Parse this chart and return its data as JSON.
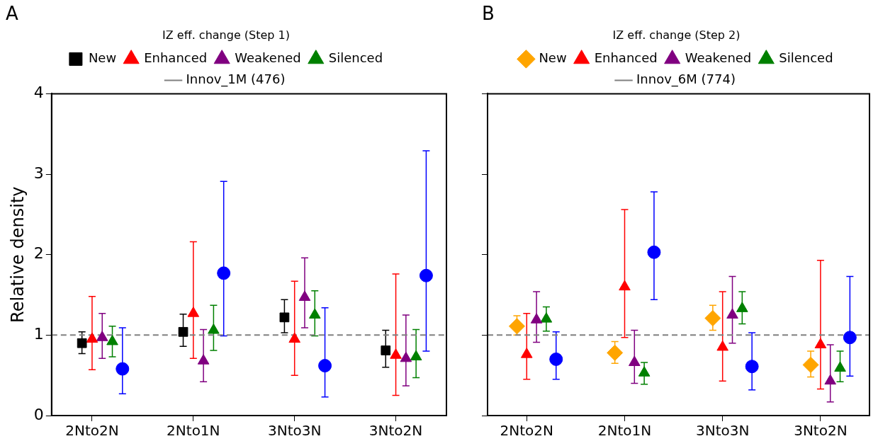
{
  "chart_data": [
    {
      "type": "scatter",
      "title": "A",
      "ylabel": "Relative density",
      "legend_title": "IZ eff. change (Step 1)",
      "legend": "top",
      "grid": false,
      "categories": [
        "2Nto2N",
        "2Nto1N",
        "3Nto3N",
        "3Nto2N"
      ],
      "ylim": [
        0,
        4
      ],
      "yticks": [
        0,
        1,
        2,
        3,
        4
      ],
      "ref_lines": [
        {
          "axis": "y",
          "value": 1,
          "label": "Innov_1M (476)",
          "color": "#808080",
          "line_style": "dashed"
        }
      ],
      "series": [
        {
          "name": "New",
          "color": "#000000",
          "marker": "square",
          "values": [
            0.9,
            1.04,
            1.22,
            0.81
          ],
          "errors": [
            [
              0.77,
              1.04
            ],
            [
              0.86,
              1.26
            ],
            [
              1.03,
              1.44
            ],
            [
              0.6,
              1.06
            ]
          ]
        },
        {
          "name": "Enhanced",
          "color": "#ff0000",
          "marker": "triangle",
          "values": [
            0.95,
            1.27,
            0.95,
            0.75
          ],
          "errors": [
            [
              0.57,
              1.48
            ],
            [
              0.71,
              2.16
            ],
            [
              0.5,
              1.67
            ],
            [
              0.25,
              1.76
            ]
          ]
        },
        {
          "name": "Weakened",
          "color": "#800080",
          "marker": "triangle",
          "values": [
            0.97,
            0.68,
            1.47,
            0.71
          ],
          "errors": [
            [
              0.71,
              1.27
            ],
            [
              0.42,
              1.07
            ],
            [
              1.09,
              1.96
            ],
            [
              0.37,
              1.25
            ]
          ]
        },
        {
          "name": "Silenced",
          "color": "#008000",
          "marker": "triangle",
          "values": [
            0.92,
            1.06,
            1.25,
            0.73
          ],
          "errors": [
            [
              0.73,
              1.11
            ],
            [
              0.81,
              1.37
            ],
            [
              0.99,
              1.55
            ],
            [
              0.47,
              1.07
            ]
          ]
        },
        {
          "color": "#0000ff",
          "marker": "circle",
          "values": [
            0.58,
            1.77,
            0.62,
            1.74
          ],
          "errors": [
            [
              0.27,
              1.09
            ],
            [
              0.99,
              2.91
            ],
            [
              0.23,
              1.34
            ],
            [
              0.8,
              3.29
            ]
          ]
        }
      ]
    },
    {
      "type": "scatter",
      "title": "B",
      "legend_title": "IZ eff. change (Step 2)",
      "legend": "top",
      "grid": false,
      "tick_labels": "x",
      "categories": [
        "2Nto2N",
        "2Nto1N",
        "3Nto3N",
        "3Nto2N"
      ],
      "ylim": [
        0,
        4
      ],
      "yticks": [
        0,
        1,
        2,
        3,
        4
      ],
      "ref_lines": [
        {
          "axis": "y",
          "value": 1,
          "label": "Innov_6M (774)",
          "color": "#808080",
          "line_style": "dashed"
        }
      ],
      "series": [
        {
          "name": "New",
          "color": "#ffa500",
          "marker": "diamond",
          "values": [
            1.11,
            0.78,
            1.21,
            0.63
          ],
          "errors": [
            [
              1.0,
              1.24
            ],
            [
              0.65,
              0.92
            ],
            [
              1.06,
              1.37
            ],
            [
              0.48,
              0.8
            ]
          ]
        },
        {
          "name": "Enhanced",
          "color": "#ff0000",
          "marker": "triangle",
          "values": [
            0.76,
            1.6,
            0.85,
            0.88
          ],
          "errors": [
            [
              0.45,
              1.27
            ],
            [
              0.97,
              2.56
            ],
            [
              0.43,
              1.54
            ],
            [
              0.33,
              1.93
            ]
          ]
        },
        {
          "name": "Weakened",
          "color": "#800080",
          "marker": "triangle",
          "values": [
            1.19,
            0.66,
            1.25,
            0.43
          ],
          "errors": [
            [
              0.91,
              1.54
            ],
            [
              0.4,
              1.06
            ],
            [
              0.9,
              1.73
            ],
            [
              0.17,
              0.88
            ]
          ]
        },
        {
          "name": "Silenced",
          "color": "#008000",
          "marker": "triangle",
          "values": [
            1.2,
            0.53,
            1.33,
            0.59
          ],
          "errors": [
            [
              1.05,
              1.35
            ],
            [
              0.39,
              0.66
            ],
            [
              1.14,
              1.54
            ],
            [
              0.42,
              0.8
            ]
          ]
        },
        {
          "color": "#0000ff",
          "marker": "circle",
          "values": [
            0.7,
            2.03,
            0.61,
            0.97
          ],
          "errors": [
            [
              0.45,
              1.04
            ],
            [
              1.44,
              2.78
            ],
            [
              0.32,
              1.03
            ],
            [
              0.49,
              1.73
            ]
          ]
        }
      ]
    }
  ]
}
